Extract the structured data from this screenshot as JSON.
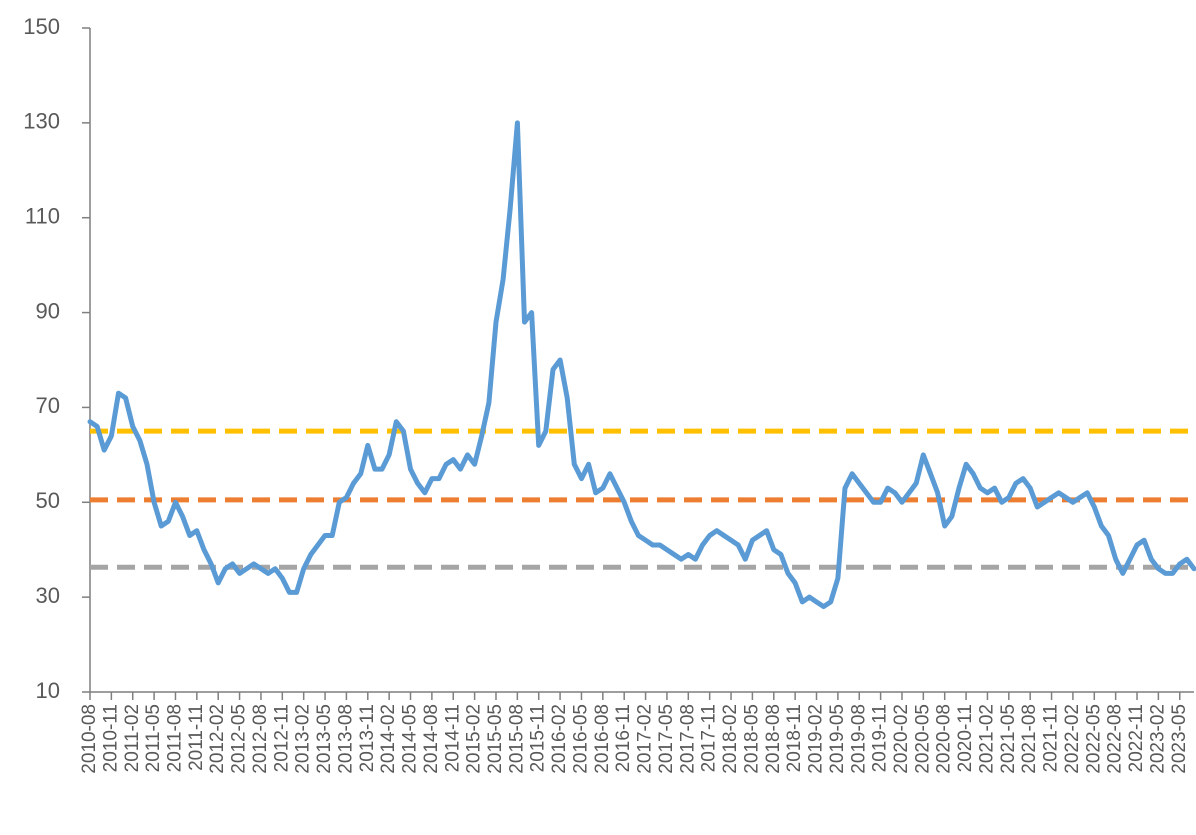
{
  "chart_data": {
    "type": "line",
    "categories": [
      "2010-08",
      null,
      null,
      "2010-11",
      null,
      null,
      "2011-02",
      null,
      null,
      "2011-05",
      null,
      null,
      "2011-08",
      null,
      null,
      "2011-11",
      null,
      null,
      "2012-02",
      null,
      null,
      "2012-05",
      null,
      null,
      "2012-08",
      null,
      null,
      "2012-11",
      null,
      null,
      "2013-02",
      null,
      null,
      "2013-05",
      null,
      null,
      "2013-08",
      null,
      null,
      "2013-11",
      null,
      null,
      "2014-02",
      null,
      null,
      "2014-05",
      null,
      null,
      "2014-08",
      null,
      null,
      "2014-11",
      null,
      null,
      "2015-02",
      null,
      null,
      "2015-05",
      null,
      null,
      "2015-08",
      null,
      null,
      "2015-11",
      null,
      null,
      "2016-02",
      null,
      null,
      "2016-05",
      null,
      null,
      "2016-08",
      null,
      null,
      "2016-11",
      null,
      null,
      "2017-02",
      null,
      null,
      "2017-05",
      null,
      null,
      "2017-08",
      null,
      null,
      "2017-11",
      null,
      null,
      "2018-02",
      null,
      null,
      "2018-05",
      null,
      null,
      "2018-08",
      null,
      null,
      "2018-11",
      null,
      null,
      "2019-02",
      null,
      null,
      "2019-05",
      null,
      null,
      "2019-08",
      null,
      null,
      "2019-11",
      null,
      null,
      "2020-02",
      null,
      null,
      "2020-05",
      null,
      null,
      "2020-08",
      null,
      null,
      "2020-11",
      null,
      null,
      "2021-02",
      null,
      null,
      "2021-05",
      null,
      null,
      "2021-08",
      null,
      null,
      "2021-11",
      null,
      null,
      "2022-02",
      null,
      null,
      "2022-05",
      null,
      null,
      "2022-08",
      null,
      null,
      "2022-11",
      null,
      null,
      "2023-02",
      null,
      null,
      "2023-05",
      null,
      null
    ],
    "values": [
      67,
      66,
      61,
      64,
      73,
      72,
      66,
      63,
      58,
      50,
      45,
      46,
      50,
      47,
      43,
      44,
      40,
      37,
      33,
      36,
      37,
      35,
      36,
      37,
      36,
      35,
      36,
      34,
      31,
      31,
      36,
      39,
      41,
      43,
      43,
      50,
      51,
      54,
      56,
      62,
      57,
      57,
      60,
      67,
      65,
      57,
      54,
      52,
      55,
      55,
      58,
      59,
      57,
      60,
      58,
      64,
      71,
      88,
      97,
      112,
      130,
      88,
      90,
      62,
      65,
      78,
      80,
      72,
      58,
      55,
      58,
      52,
      53,
      56,
      53,
      50,
      46,
      43,
      42,
      41,
      41,
      40,
      39,
      38,
      39,
      38,
      41,
      43,
      44,
      43,
      42,
      41,
      38,
      42,
      43,
      44,
      40,
      39,
      35,
      33,
      29,
      30,
      29,
      28,
      29,
      34,
      53,
      56,
      54,
      52,
      50,
      50,
      53,
      52,
      50,
      52,
      54,
      60,
      56,
      52,
      45,
      47,
      53,
      58,
      56,
      53,
      52,
      53,
      50,
      51,
      54,
      55,
      53,
      49,
      50,
      51,
      52,
      51,
      50,
      51,
      52,
      49,
      45,
      43,
      38,
      35,
      38,
      41,
      42,
      38,
      36,
      35,
      35,
      37,
      38,
      36
    ],
    "color": "#5b9bd5",
    "hlines": [
      {
        "value": 65,
        "color": "#ffc000"
      },
      {
        "value": 50.5,
        "color": "#ed7d31"
      },
      {
        "value": 36.3,
        "color": "#a5a5a5"
      }
    ],
    "ylim": [
      10,
      150
    ],
    "yticks": [
      10,
      30,
      50,
      70,
      90,
      110,
      130,
      150
    ],
    "grid": false
  }
}
